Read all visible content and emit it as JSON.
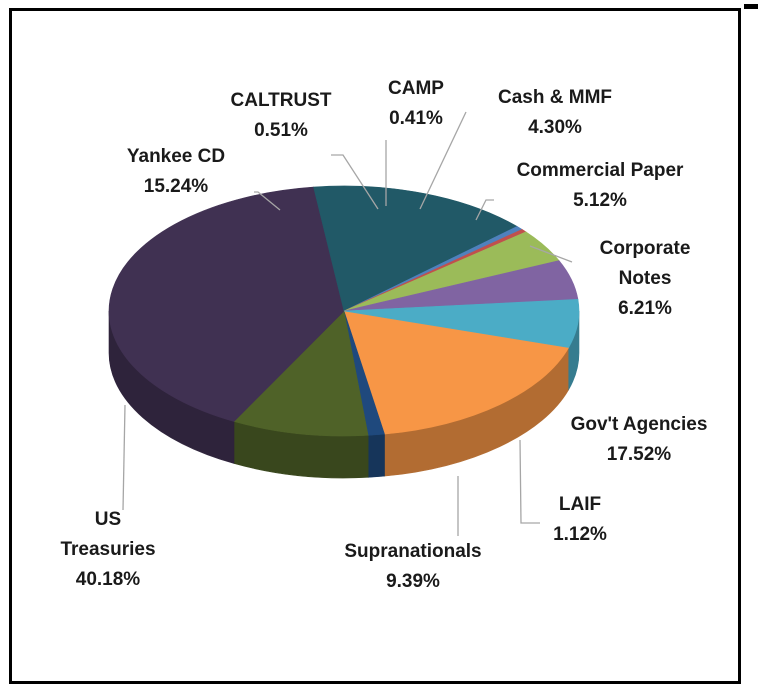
{
  "chart_data": {
    "type": "pie",
    "style": "3d",
    "categories": [
      "Gov't Agencies",
      "LAIF",
      "Supranationals",
      "US Treasuries",
      "Yankee CD",
      "CALTRUST",
      "CAMP",
      "Cash & MMF",
      "Commercial Paper",
      "Corporate Notes"
    ],
    "values": [
      17.52,
      1.12,
      9.39,
      40.18,
      15.24,
      0.51,
      0.41,
      4.3,
      5.12,
      6.21
    ],
    "colors": [
      "#f79646",
      "#1f497d",
      "#4f6228",
      "#403152",
      "#215967",
      "#4f81bd",
      "#c0504d",
      "#9bbb59",
      "#8064a2",
      "#4bacc6"
    ],
    "labels": [
      {
        "lines": [
          "Gov't Agencies"
        ],
        "percent": "17.52%"
      },
      {
        "lines": [
          "LAIF"
        ],
        "percent": "1.12%"
      },
      {
        "lines": [
          "Supranationals"
        ],
        "percent": "9.39%"
      },
      {
        "lines": [
          "US",
          "Treasuries"
        ],
        "percent": "40.18%"
      },
      {
        "lines": [
          "Yankee CD"
        ],
        "percent": "15.24%"
      },
      {
        "lines": [
          "CALTRUST"
        ],
        "percent": "0.51%"
      },
      {
        "lines": [
          "CAMP"
        ],
        "percent": "0.41%"
      },
      {
        "lines": [
          "Cash & MMF"
        ],
        "percent": "4.30%"
      },
      {
        "lines": [
          "Commercial Paper"
        ],
        "percent": "5.12%"
      },
      {
        "lines": [
          "Corporate",
          "Notes"
        ],
        "percent": "6.21%"
      }
    ],
    "start_category": "Gov't Agencies",
    "direction": "clockwise",
    "legend": "none",
    "title": ""
  }
}
